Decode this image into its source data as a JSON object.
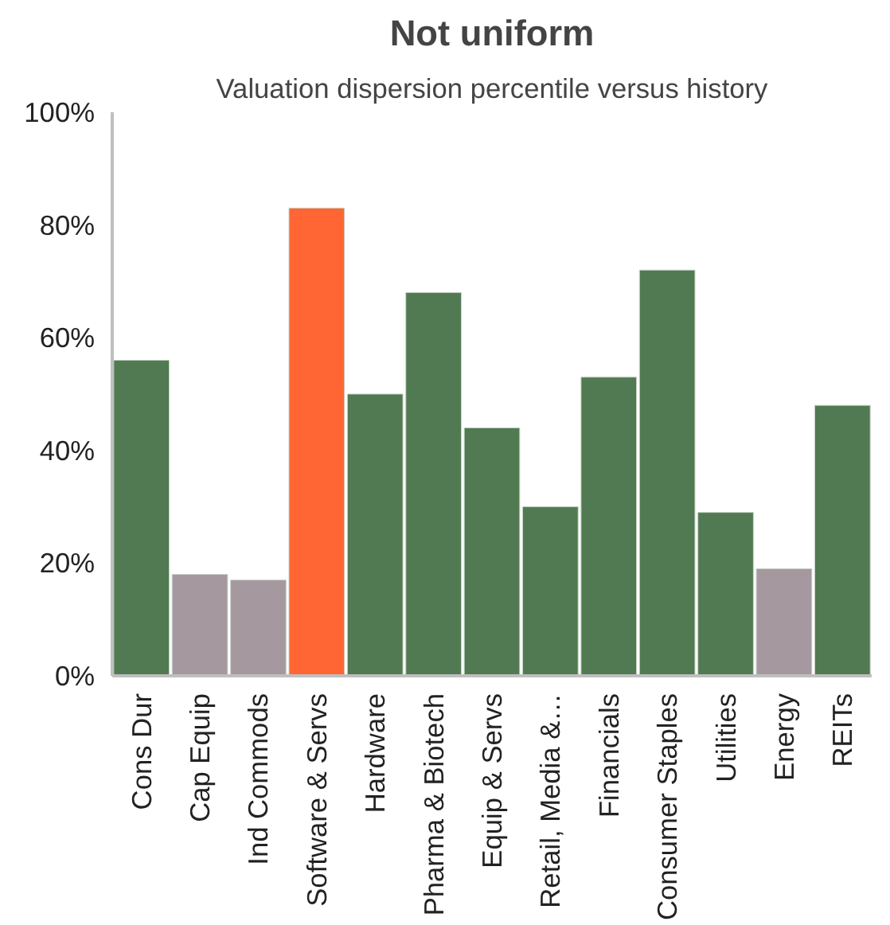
{
  "chart_data": {
    "type": "bar",
    "title": "Not uniform",
    "subtitle": "Valuation dispersion percentile versus history",
    "categories": [
      "Cons Dur",
      "Cap Equip",
      "Ind Commods",
      "Software & Servs",
      "Hardware",
      "Pharma & Biotech",
      "Equip & Servs",
      "Retail, Media &…",
      "Financials",
      "Consumer Staples",
      "Utilities",
      "Energy",
      "REITs"
    ],
    "values": [
      56,
      18,
      17,
      83,
      50,
      68,
      44,
      30,
      53,
      72,
      29,
      19,
      48
    ],
    "colors": [
      "#527a52",
      "#a5989f",
      "#a5989f",
      "#ff6633",
      "#527a52",
      "#527a52",
      "#527a52",
      "#527a52",
      "#527a52",
      "#527a52",
      "#527a52",
      "#a5989f",
      "#527a52"
    ],
    "ylim": [
      0,
      100
    ],
    "yticks": [
      {
        "value": 0,
        "label": "0%"
      },
      {
        "value": 20,
        "label": "20%"
      },
      {
        "value": 40,
        "label": "40%"
      },
      {
        "value": 60,
        "label": "60%"
      },
      {
        "value": 80,
        "label": "80%"
      },
      {
        "value": 100,
        "label": "100%"
      }
    ],
    "grid": false
  }
}
